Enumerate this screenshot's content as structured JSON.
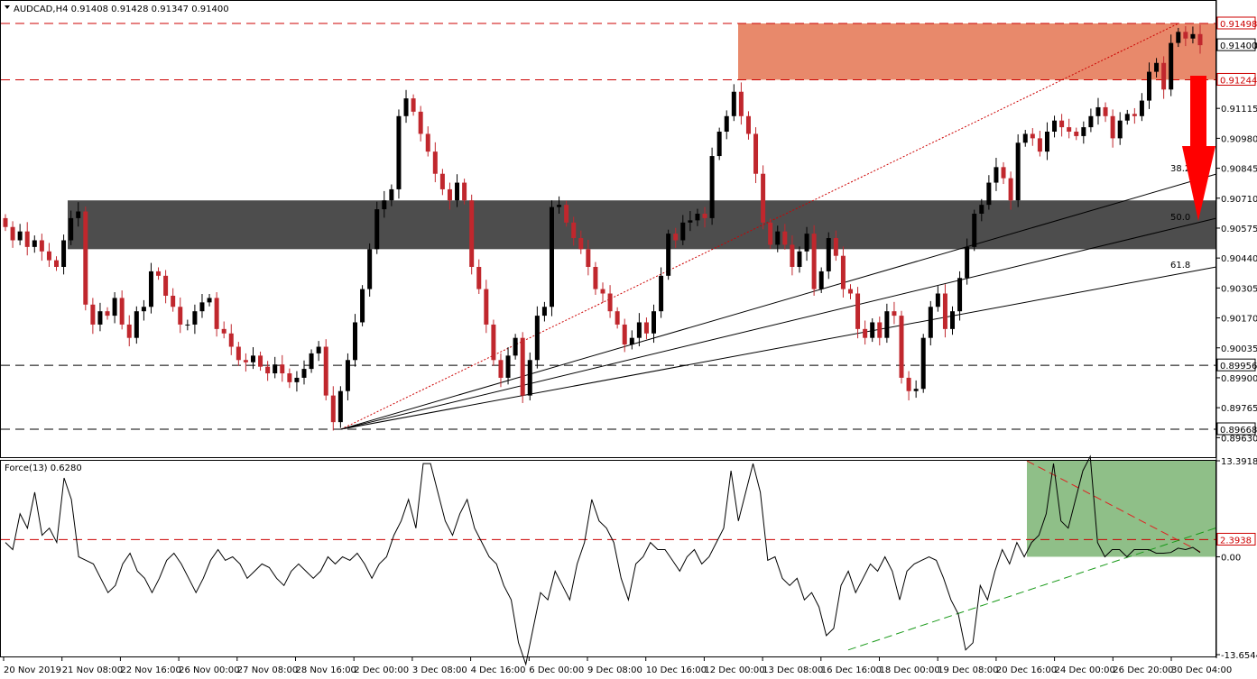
{
  "chart_data": [
    {
      "type": "candlestick",
      "title": "AUDCAD,H4  0.91408 0.91428 0.91347 0.91400",
      "symbol": "AUDCAD",
      "timeframe": "H4",
      "ohlc_last": {
        "open": 0.91408,
        "high": 0.91428,
        "low": 0.91347,
        "close": 0.914
      },
      "ylim": [
        0.8959,
        0.916
      ],
      "price_axis_ticks": [
        "0.91400",
        "0.91115",
        "0.90980",
        "0.90845",
        "0.90710",
        "0.90575",
        "0.90440",
        "0.90305",
        "0.90170",
        "0.90035",
        "0.89900",
        "0.89765",
        "0.89630"
      ],
      "horizontal_levels": [
        {
          "value": 0.91498,
          "label": "0.91498",
          "color": "#cc0000"
        },
        {
          "value": 0.91244,
          "label": "0.91244",
          "color": "#cc0000"
        },
        {
          "value": 0.89956,
          "label": "0.89956",
          "color": "#000000"
        },
        {
          "value": 0.89668,
          "label": "0.89668",
          "color": "#000000"
        }
      ],
      "current_price_label": "0.91400",
      "resistance_zone": {
        "from": 0.91244,
        "to": 0.91498,
        "color": "#e8896b"
      },
      "support_zone": {
        "from": 0.9048,
        "to": 0.907,
        "color": "#4d4d4d"
      },
      "fib_fan_labels": [
        "38.2",
        "50.0",
        "61.8"
      ],
      "x_tick_labels": [
        "20 Nov 2019",
        "21 Nov 08:00",
        "22 Nov 16:00",
        "26 Nov 00:00",
        "27 Nov 08:00",
        "28 Nov 16:00",
        "2 Dec 00:00",
        "3 Dec 08:00",
        "4 Dec 16:00",
        "6 Dec 00:00",
        "9 Dec 08:00",
        "10 Dec 16:00",
        "12 Dec 00:00",
        "13 Dec 08:00",
        "16 Dec 16:00",
        "18 Dec 00:00",
        "19 Dec 08:00",
        "20 Dec 16:00",
        "24 Dec 00:00",
        "26 Dec 20:00",
        "30 Dec 04:00"
      ],
      "bull_color": "#000000",
      "bear_color": "#c0272d",
      "arrow_color": "#ff0000"
    },
    {
      "type": "line",
      "title": "Force(13) 0.6280",
      "indicator": "Force(13)",
      "last_value": 0.628,
      "ylim": [
        -13.6544,
        13.3918
      ],
      "axis_ticks": [
        "13.3918",
        "2.3938",
        "0.00",
        "-13.6544"
      ],
      "level": {
        "value": 2.3938,
        "label": "2.3938",
        "color": "#cc0000"
      },
      "highlight_box_color": "#8fbf88"
    }
  ]
}
